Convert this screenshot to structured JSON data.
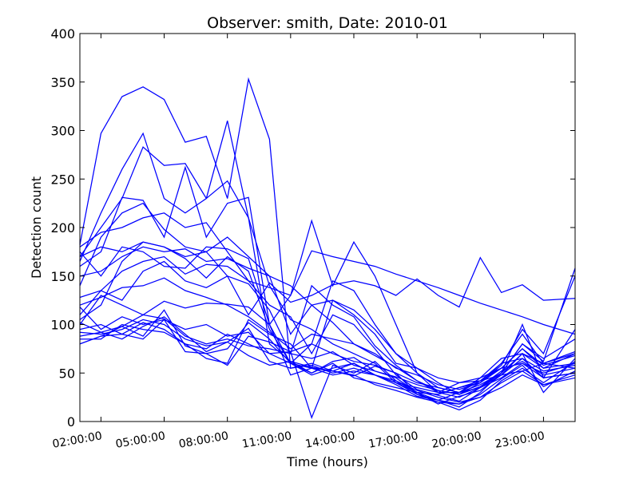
{
  "chart_data": {
    "type": "line",
    "title": "Observer: smith, Date: 2010-01",
    "xlabel": "Time (hours)",
    "ylabel": "Detection count",
    "xlim": [
      1.0,
      24.5
    ],
    "ylim": [
      0,
      400
    ],
    "yticks": [
      0,
      50,
      100,
      150,
      200,
      250,
      300,
      350,
      400
    ],
    "xticks": [
      2,
      5,
      8,
      11,
      14,
      17,
      20,
      23
    ],
    "xtick_labels": [
      "02:00:00",
      "05:00:00",
      "08:00:00",
      "11:00:00",
      "14:00:00",
      "17:00:00",
      "20:00:00",
      "23:00:00"
    ],
    "grid": false,
    "line_color": "#0000ff",
    "x": [
      1,
      2,
      3,
      4,
      5,
      6,
      7,
      8,
      9,
      10,
      11,
      12,
      13,
      14,
      15,
      16,
      17,
      18,
      19,
      20,
      21,
      22,
      23,
      24.5
    ],
    "series": [
      {
        "values": [
          182,
          297,
          335,
          345,
          332,
          288,
          294,
          230,
          353,
          291,
          55,
          60,
          52,
          47,
          57,
          50,
          28,
          22,
          30,
          45,
          55,
          75,
          55,
          70
        ]
      },
      {
        "values": [
          165,
          215,
          260,
          297,
          230,
          215,
          230,
          310,
          210,
          80,
          62,
          50,
          60,
          45,
          40,
          35,
          30,
          28,
          35,
          40,
          55,
          60,
          50,
          60
        ]
      },
      {
        "values": [
          170,
          200,
          230,
          283,
          264,
          266,
          230,
          248,
          210,
          140,
          105,
          95,
          80,
          70,
          60,
          40,
          35,
          30,
          40,
          45,
          65,
          70,
          55,
          60
        ]
      },
      {
        "values": [
          160,
          175,
          231,
          228,
          190,
          262,
          190,
          225,
          231,
          100,
          130,
          207,
          140,
          185,
          150,
          100,
          50,
          30,
          25,
          35,
          50,
          70,
          60,
          55
        ]
      },
      {
        "values": [
          140,
          190,
          215,
          225,
          198,
          180,
          175,
          190,
          170,
          150,
          90,
          120,
          102,
          80,
          70,
          55,
          48,
          38,
          33,
          40,
          60,
          65,
          45,
          50
        ]
      },
      {
        "values": [
          180,
          195,
          200,
          210,
          215,
          200,
          205,
          175,
          145,
          138,
          130,
          176,
          170,
          165,
          160,
          152,
          145,
          138,
          130,
          122,
          115,
          108,
          100,
          90
        ]
      },
      {
        "values": [
          170,
          180,
          175,
          185,
          180,
          170,
          175,
          150,
          110,
          143,
          123,
          130,
          141,
          145,
          140,
          130,
          147,
          130,
          118,
          169,
          133,
          141,
          125,
          127
        ]
      },
      {
        "values": [
          150,
          155,
          170,
          180,
          175,
          178,
          165,
          168,
          158,
          150,
          140,
          120,
          125,
          110,
          90,
          60,
          55,
          45,
          40,
          42,
          48,
          52,
          60,
          70
        ]
      },
      {
        "values": [
          128,
          135,
          155,
          165,
          170,
          152,
          162,
          160,
          145,
          120,
          108,
          70,
          110,
          100,
          75,
          48,
          33,
          27,
          21,
          35,
          48,
          65,
          52,
          58
        ]
      },
      {
        "values": [
          105,
          120,
          165,
          185,
          180,
          168,
          148,
          170,
          155,
          95,
          60,
          55,
          125,
          115,
          95,
          70,
          55,
          40,
          28,
          40,
          58,
          95,
          70,
          150
        ]
      },
      {
        "values": [
          110,
          135,
          125,
          155,
          165,
          145,
          138,
          150,
          142,
          115,
          70,
          140,
          120,
          108,
          78,
          58,
          42,
          30,
          30,
          38,
          50,
          80,
          62,
          158
        ]
      },
      {
        "values": [
          100,
          130,
          120,
          110,
          124,
          117,
          122,
          121,
          118,
          100,
          60,
          80,
          145,
          135,
          100,
          70,
          50,
          35,
          30,
          35,
          45,
          60,
          45,
          50
        ]
      },
      {
        "values": [
          95,
          100,
          90,
          85,
          105,
          95,
          100,
          88,
          92,
          70,
          60,
          48,
          55,
          60,
          48,
          42,
          32,
          25,
          20,
          25,
          35,
          48,
          38,
          45
        ]
      },
      {
        "values": [
          102,
          92,
          98,
          110,
          106,
          88,
          80,
          85,
          78,
          75,
          70,
          65,
          72,
          58,
          52,
          45,
          30,
          22,
          15,
          30,
          50,
          100,
          45,
          95
        ]
      },
      {
        "values": [
          92,
          90,
          95,
          105,
          100,
          85,
          78,
          82,
          96,
          62,
          55,
          58,
          50,
          55,
          48,
          38,
          26,
          22,
          18,
          28,
          44,
          58,
          36,
          52
        ]
      },
      {
        "values": [
          80,
          88,
          98,
          88,
          115,
          78,
          70,
          75,
          102,
          85,
          60,
          50,
          62,
          66,
          52,
          46,
          38,
          32,
          28,
          36,
          52,
          62,
          48,
          55
        ]
      },
      {
        "values": [
          85,
          85,
          100,
          95,
          92,
          80,
          65,
          60,
          105,
          90,
          80,
          55,
          48,
          52,
          48,
          40,
          28,
          20,
          12,
          22,
          42,
          55,
          40,
          62
        ]
      },
      {
        "values": [
          118,
          95,
          108,
          100,
          105,
          72,
          70,
          58,
          88,
          82,
          72,
          4,
          58,
          50,
          62,
          42,
          30,
          18,
          26,
          32,
          48,
          70,
          30,
          65
        ]
      },
      {
        "values": [
          88,
          92,
          85,
          98,
          108,
          90,
          72,
          82,
          68,
          58,
          62,
          56,
          52,
          48,
          38,
          32,
          25,
          20,
          18,
          25,
          40,
          52,
          38,
          48
        ]
      },
      {
        "values": [
          80,
          88,
          90,
          102,
          95,
          80,
          75,
          90,
          80,
          70,
          72,
          80,
          70,
          62,
          58,
          50,
          40,
          35,
          30,
          42,
          55,
          75,
          58,
          68
        ]
      },
      {
        "values": [
          175,
          150,
          180,
          175,
          160,
          158,
          180,
          178,
          168,
          100,
          48,
          55,
          52,
          60,
          48,
          40,
          30,
          28,
          35,
          42,
          60,
          90,
          60,
          72
        ]
      },
      {
        "values": [
          120,
          128,
          138,
          140,
          148,
          135,
          128,
          120,
          108,
          92,
          75,
          90,
          85,
          80,
          68,
          56,
          42,
          32,
          28,
          36,
          50,
          80,
          65,
          85
        ]
      }
    ]
  }
}
